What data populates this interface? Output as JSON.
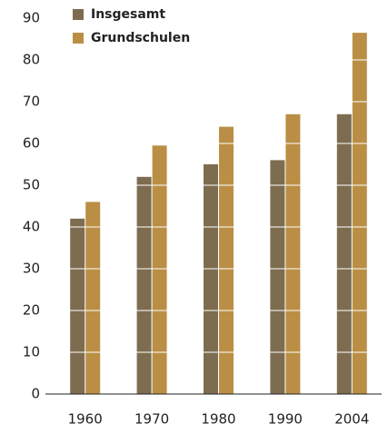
{
  "chart_data": {
    "type": "bar",
    "categories": [
      "1960",
      "1970",
      "1980",
      "1990",
      "2004"
    ],
    "series": [
      {
        "name": "Insgesamt",
        "color": "#7d6c50",
        "values": [
          42,
          52,
          55,
          56,
          67
        ]
      },
      {
        "name": "Grundschulen",
        "color": "#ba8f45",
        "values": [
          46,
          59.5,
          64,
          67,
          86.5
        ]
      }
    ],
    "ylim": [
      0,
      90
    ],
    "yticks": [
      0,
      10,
      20,
      30,
      40,
      50,
      60,
      70,
      80,
      90
    ],
    "grid": true
  }
}
